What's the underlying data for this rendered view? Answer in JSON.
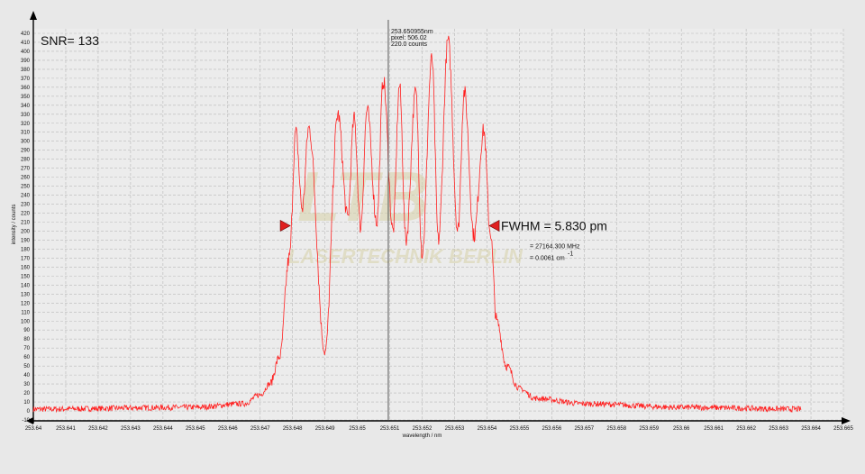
{
  "chart_data": {
    "type": "line",
    "xlabel": "wavelength / nm",
    "ylabel": "intensity / counts",
    "xlim": [
      253.64,
      253.665
    ],
    "ylim": [
      -10,
      425
    ],
    "x_ticks": [
      "253.64",
      "253.641",
      "253.642",
      "253.643",
      "253.644",
      "253.645",
      "253.646",
      "253.647",
      "253.648",
      "253.649",
      "253.65",
      "253.651",
      "253.652",
      "253.653",
      "253.654",
      "253.655",
      "253.656",
      "253.657",
      "253.658",
      "253.659",
      "253.66",
      "253.661",
      "253.662",
      "253.663",
      "253.664",
      "253.665"
    ],
    "y_ticks": [
      -10,
      0,
      10,
      20,
      30,
      40,
      50,
      60,
      70,
      80,
      90,
      100,
      110,
      120,
      130,
      140,
      150,
      160,
      170,
      180,
      190,
      200,
      210,
      220,
      230,
      240,
      250,
      260,
      270,
      280,
      290,
      300,
      310,
      320,
      330,
      340,
      350,
      360,
      370,
      380,
      390,
      400,
      410,
      420
    ],
    "grid": true,
    "series_color": "#ff2020",
    "baseline": 3,
    "envelope": [
      {
        "x": 253.64,
        "y": 2
      },
      {
        "x": 253.645,
        "y": 4
      },
      {
        "x": 253.6465,
        "y": 8
      },
      {
        "x": 253.647,
        "y": 18
      },
      {
        "x": 253.6473,
        "y": 30
      },
      {
        "x": 253.6476,
        "y": 60
      },
      {
        "x": 253.6479,
        "y": 170
      }
    ],
    "peaks": [
      {
        "x": 253.6481,
        "y": 310
      },
      {
        "x": 253.6485,
        "y": 315
      },
      {
        "x": 253.6494,
        "y": 330
      },
      {
        "x": 253.6499,
        "y": 325
      },
      {
        "x": 253.6503,
        "y": 335
      },
      {
        "x": 253.6508,
        "y": 368
      },
      {
        "x": 253.6513,
        "y": 362
      },
      {
        "x": 253.6518,
        "y": 355
      },
      {
        "x": 253.6523,
        "y": 392
      },
      {
        "x": 253.6528,
        "y": 412
      },
      {
        "x": 253.6533,
        "y": 355
      },
      {
        "x": 253.6539,
        "y": 312
      }
    ],
    "valleys": [
      {
        "x": 253.6483,
        "y": 225
      },
      {
        "x": 253.649,
        "y": 65
      },
      {
        "x": 253.6497,
        "y": 215
      },
      {
        "x": 253.6501,
        "y": 205
      },
      {
        "x": 253.6506,
        "y": 210
      },
      {
        "x": 253.6511,
        "y": 200
      },
      {
        "x": 253.6515,
        "y": 190
      },
      {
        "x": 253.652,
        "y": 175
      },
      {
        "x": 253.6525,
        "y": 190
      },
      {
        "x": 253.6531,
        "y": 200
      },
      {
        "x": 253.6536,
        "y": 195
      }
    ],
    "tail_right": [
      {
        "x": 253.6541,
        "y": 200
      },
      {
        "x": 253.6543,
        "y": 100
      },
      {
        "x": 253.6546,
        "y": 50
      },
      {
        "x": 253.655,
        "y": 25
      },
      {
        "x": 253.6555,
        "y": 14
      },
      {
        "x": 253.657,
        "y": 8
      },
      {
        "x": 253.66,
        "y": 4
      },
      {
        "x": 253.6637,
        "y": 2
      }
    ],
    "cursor": {
      "x": 253.650955,
      "line1": "253.650955nm",
      "line2": "pixel: 506.02",
      "line3": "220.0 counts"
    },
    "annotations": {
      "snr": "SNR= 133",
      "fwhm": "FWHM = 5.830 pm",
      "fwhm_mhz": "= 27164.300 MHz",
      "fwhm_cm": "= 0.0061 cm",
      "fwhm_cm_sup": "-1",
      "marker_y": 206,
      "marker_left_x": 253.6479,
      "marker_right_x": 253.6541
    },
    "watermark": [
      "LTB",
      "LASERTECHNIK BERLIN"
    ]
  }
}
